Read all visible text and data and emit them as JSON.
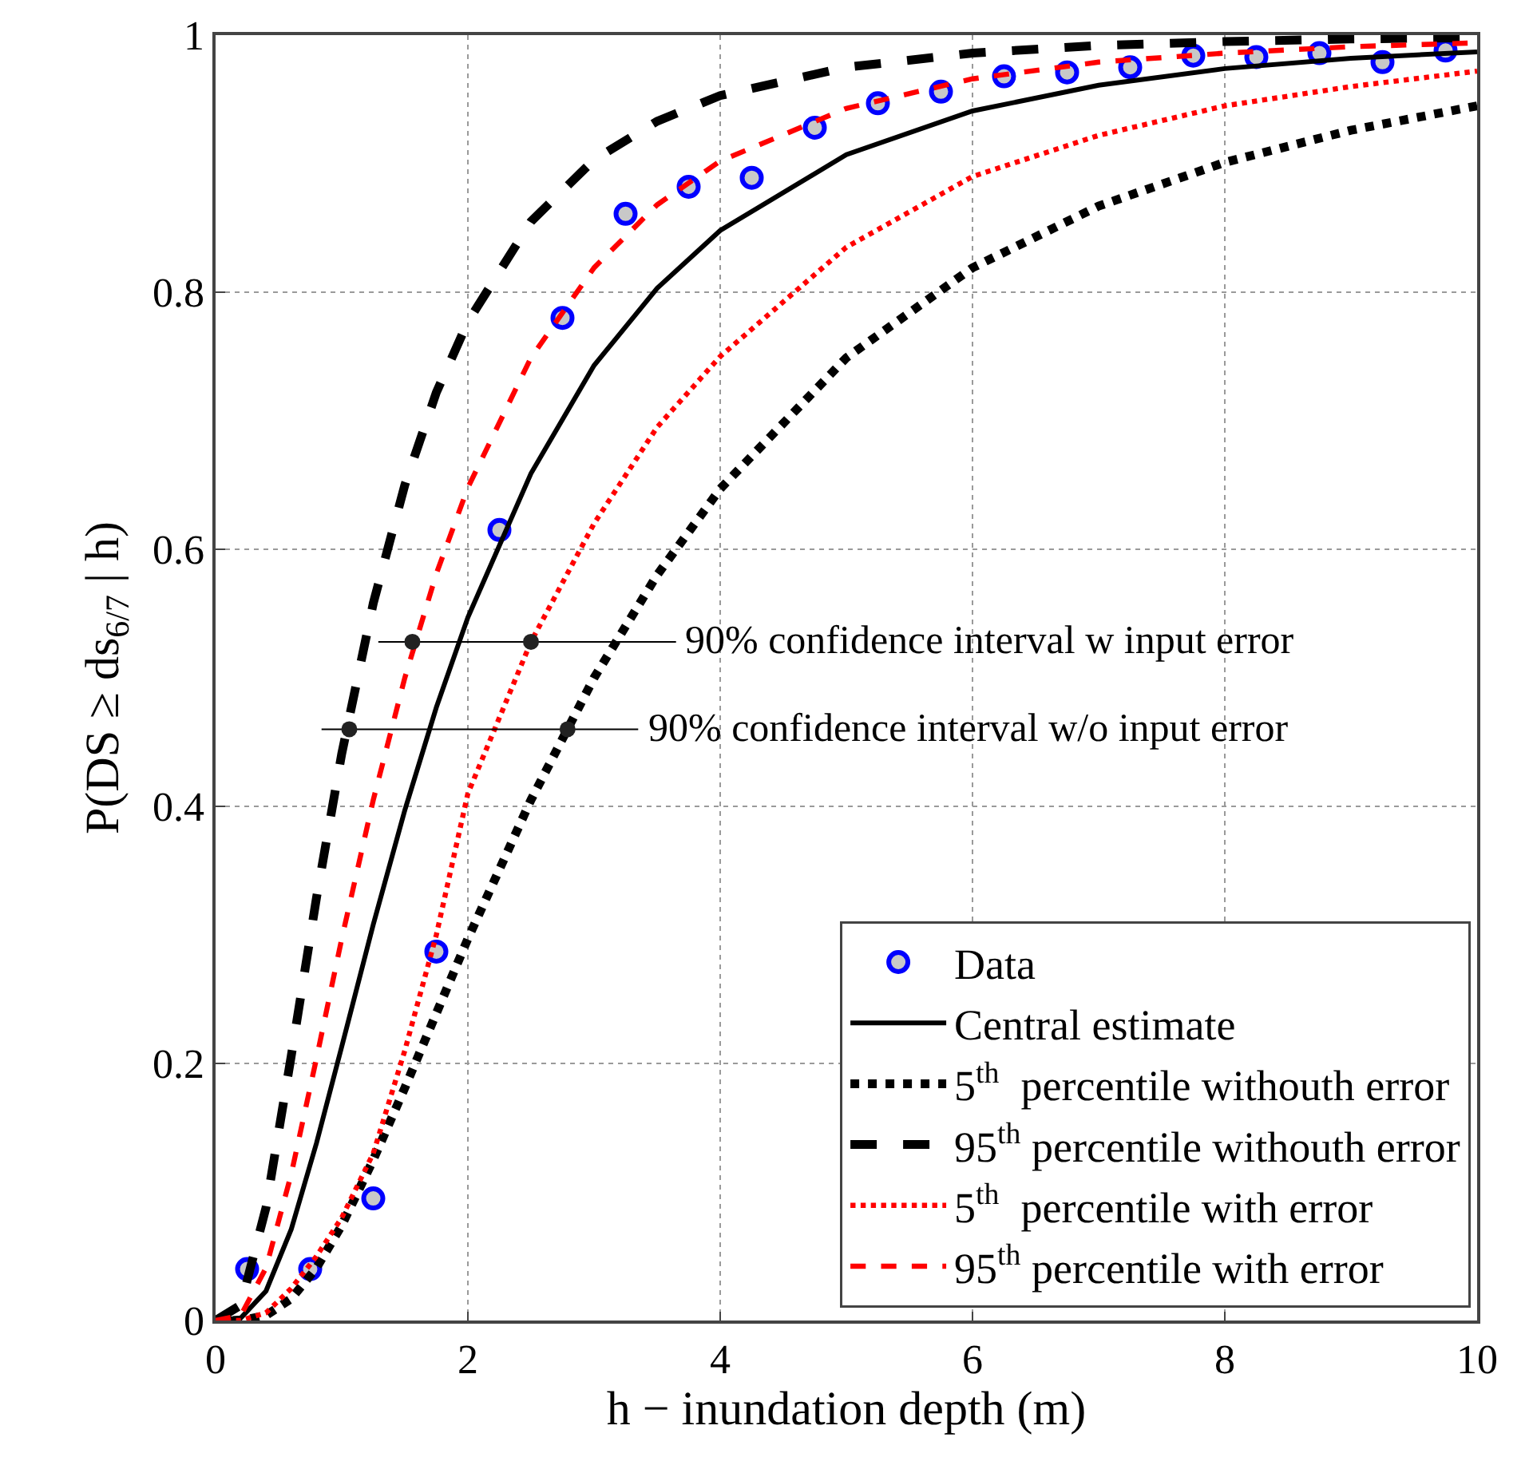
{
  "chart_data": {
    "type": "line",
    "xlabel": "h − inundation depth (m)",
    "ylabel": "P(DS ≥ ds$_{6/7}$ | h)",
    "xlim": [
      0,
      10
    ],
    "xticks": [
      0,
      2,
      4,
      6,
      8,
      10
    ],
    "ylim": [
      0,
      1
    ],
    "yticks": [
      0,
      0.2,
      0.4,
      0.6,
      0.8,
      1
    ],
    "grid": true,
    "legend": "bottom right",
    "series": [
      {
        "name": "Data",
        "type": "scatter",
        "marker": "circle",
        "color": "#0000ff",
        "x": [
          0.25,
          0.75,
          1.25,
          1.75,
          2.25,
          2.75,
          3.25,
          3.75,
          4.25,
          4.75,
          5.25,
          5.75,
          6.25,
          6.75,
          7.25,
          7.75,
          8.25,
          8.75,
          9.25,
          9.75
        ],
        "values": [
          0.04,
          0.04,
          0.095,
          0.287,
          0.615,
          0.78,
          0.861,
          0.882,
          0.889,
          0.928,
          0.947,
          0.956,
          0.968,
          0.971,
          0.975,
          0.984,
          0.983,
          0.986,
          0.979,
          0.988
        ]
      },
      {
        "name": "Central estimate",
        "line_style": "solid",
        "color": "#000000",
        "x": [
          0,
          0.2,
          0.4,
          0.6,
          0.8,
          1,
          1.25,
          1.5,
          1.75,
          2,
          2.5,
          3,
          3.5,
          4,
          5,
          6,
          7,
          8,
          9,
          10
        ],
        "values": [
          0,
          0.002,
          0.023,
          0.071,
          0.138,
          0.213,
          0.308,
          0.397,
          0.477,
          0.547,
          0.659,
          0.743,
          0.803,
          0.848,
          0.907,
          0.941,
          0.961,
          0.974,
          0.982,
          0.987
        ]
      },
      {
        "name": "5$^{th}$  percentile withouth error",
        "line_style": "dotted",
        "color": "#000000",
        "x": [
          0,
          0.2,
          0.4,
          0.6,
          0.8,
          1,
          1.25,
          1.5,
          1.75,
          2,
          2.5,
          3,
          3.5,
          4,
          5,
          6,
          7,
          8,
          9,
          10
        ],
        "values": [
          0,
          0,
          0.004,
          0.017,
          0.041,
          0.074,
          0.125,
          0.181,
          0.239,
          0.297,
          0.405,
          0.5,
          0.58,
          0.647,
          0.749,
          0.819,
          0.867,
          0.901,
          0.926,
          0.945
        ]
      },
      {
        "name": "95$^{th}$ percentile withouth error",
        "line_style": "dashed",
        "color": "#000000",
        "x": [
          0,
          0.2,
          0.4,
          0.6,
          0.8,
          1,
          1.25,
          1.5,
          1.75,
          2,
          2.5,
          3,
          3.5,
          4,
          5,
          6,
          7,
          8,
          9,
          10
        ],
        "values": [
          0,
          0.012,
          0.088,
          0.206,
          0.329,
          0.441,
          0.558,
          0.65,
          0.722,
          0.777,
          0.855,
          0.903,
          0.933,
          0.953,
          0.975,
          0.986,
          0.992,
          0.995,
          0.997,
          0.998
        ]
      },
      {
        "name": "5$^{th}$  percentile with error",
        "line_style": "dotted",
        "color": "#ff0000",
        "x": [
          0,
          0.2,
          0.4,
          0.6,
          0.8,
          1,
          1.25,
          1.5,
          1.75,
          2,
          2.5,
          3,
          3.5,
          4,
          5,
          6,
          7,
          8,
          9,
          10
        ],
        "values": [
          0,
          0,
          0.006,
          0.025,
          0.05,
          0.08,
          0.13,
          0.21,
          0.3,
          0.41,
          0.528,
          0.62,
          0.695,
          0.75,
          0.835,
          0.89,
          0.922,
          0.945,
          0.96,
          0.972
        ]
      },
      {
        "name": "95$^{th}$ percentile with error",
        "line_style": "dashed",
        "color": "#ff0000",
        "x": [
          0,
          0.2,
          0.4,
          0.6,
          0.8,
          1,
          1.25,
          1.5,
          1.75,
          2,
          2.5,
          3,
          3.5,
          4,
          5,
          6,
          7,
          8,
          9,
          10
        ],
        "values": [
          0,
          0.004,
          0.041,
          0.114,
          0.204,
          0.297,
          0.405,
          0.5,
          0.581,
          0.648,
          0.749,
          0.819,
          0.868,
          0.902,
          0.943,
          0.966,
          0.979,
          0.986,
          0.991,
          0.994
        ]
      },
      {
        "line_style": "solid",
        "marker": "none",
        "color": "#000000",
        "x": [
          1.29,
          3.65
        ],
        "values": [
          0.528,
          0.528
        ]
      },
      {
        "line_style": "solid",
        "marker": "none",
        "color": "#000000",
        "x": [
          0.84,
          3.35
        ],
        "values": [
          0.46,
          0.46
        ]
      },
      {
        "type": "scatter",
        "marker": "circle",
        "color": "#222222",
        "x": [
          1.56,
          2.5,
          1.06,
          2.79
        ],
        "values": [
          0.528,
          0.528,
          0.46,
          0.46
        ]
      }
    ],
    "annotations": [
      {
        "text": "90% confidence interval w input error",
        "x": 3.65,
        "y": 0.528
      },
      {
        "text": "90% confidence interval w/o input error",
        "x": 3.35,
        "y": 0.46
      }
    ]
  }
}
